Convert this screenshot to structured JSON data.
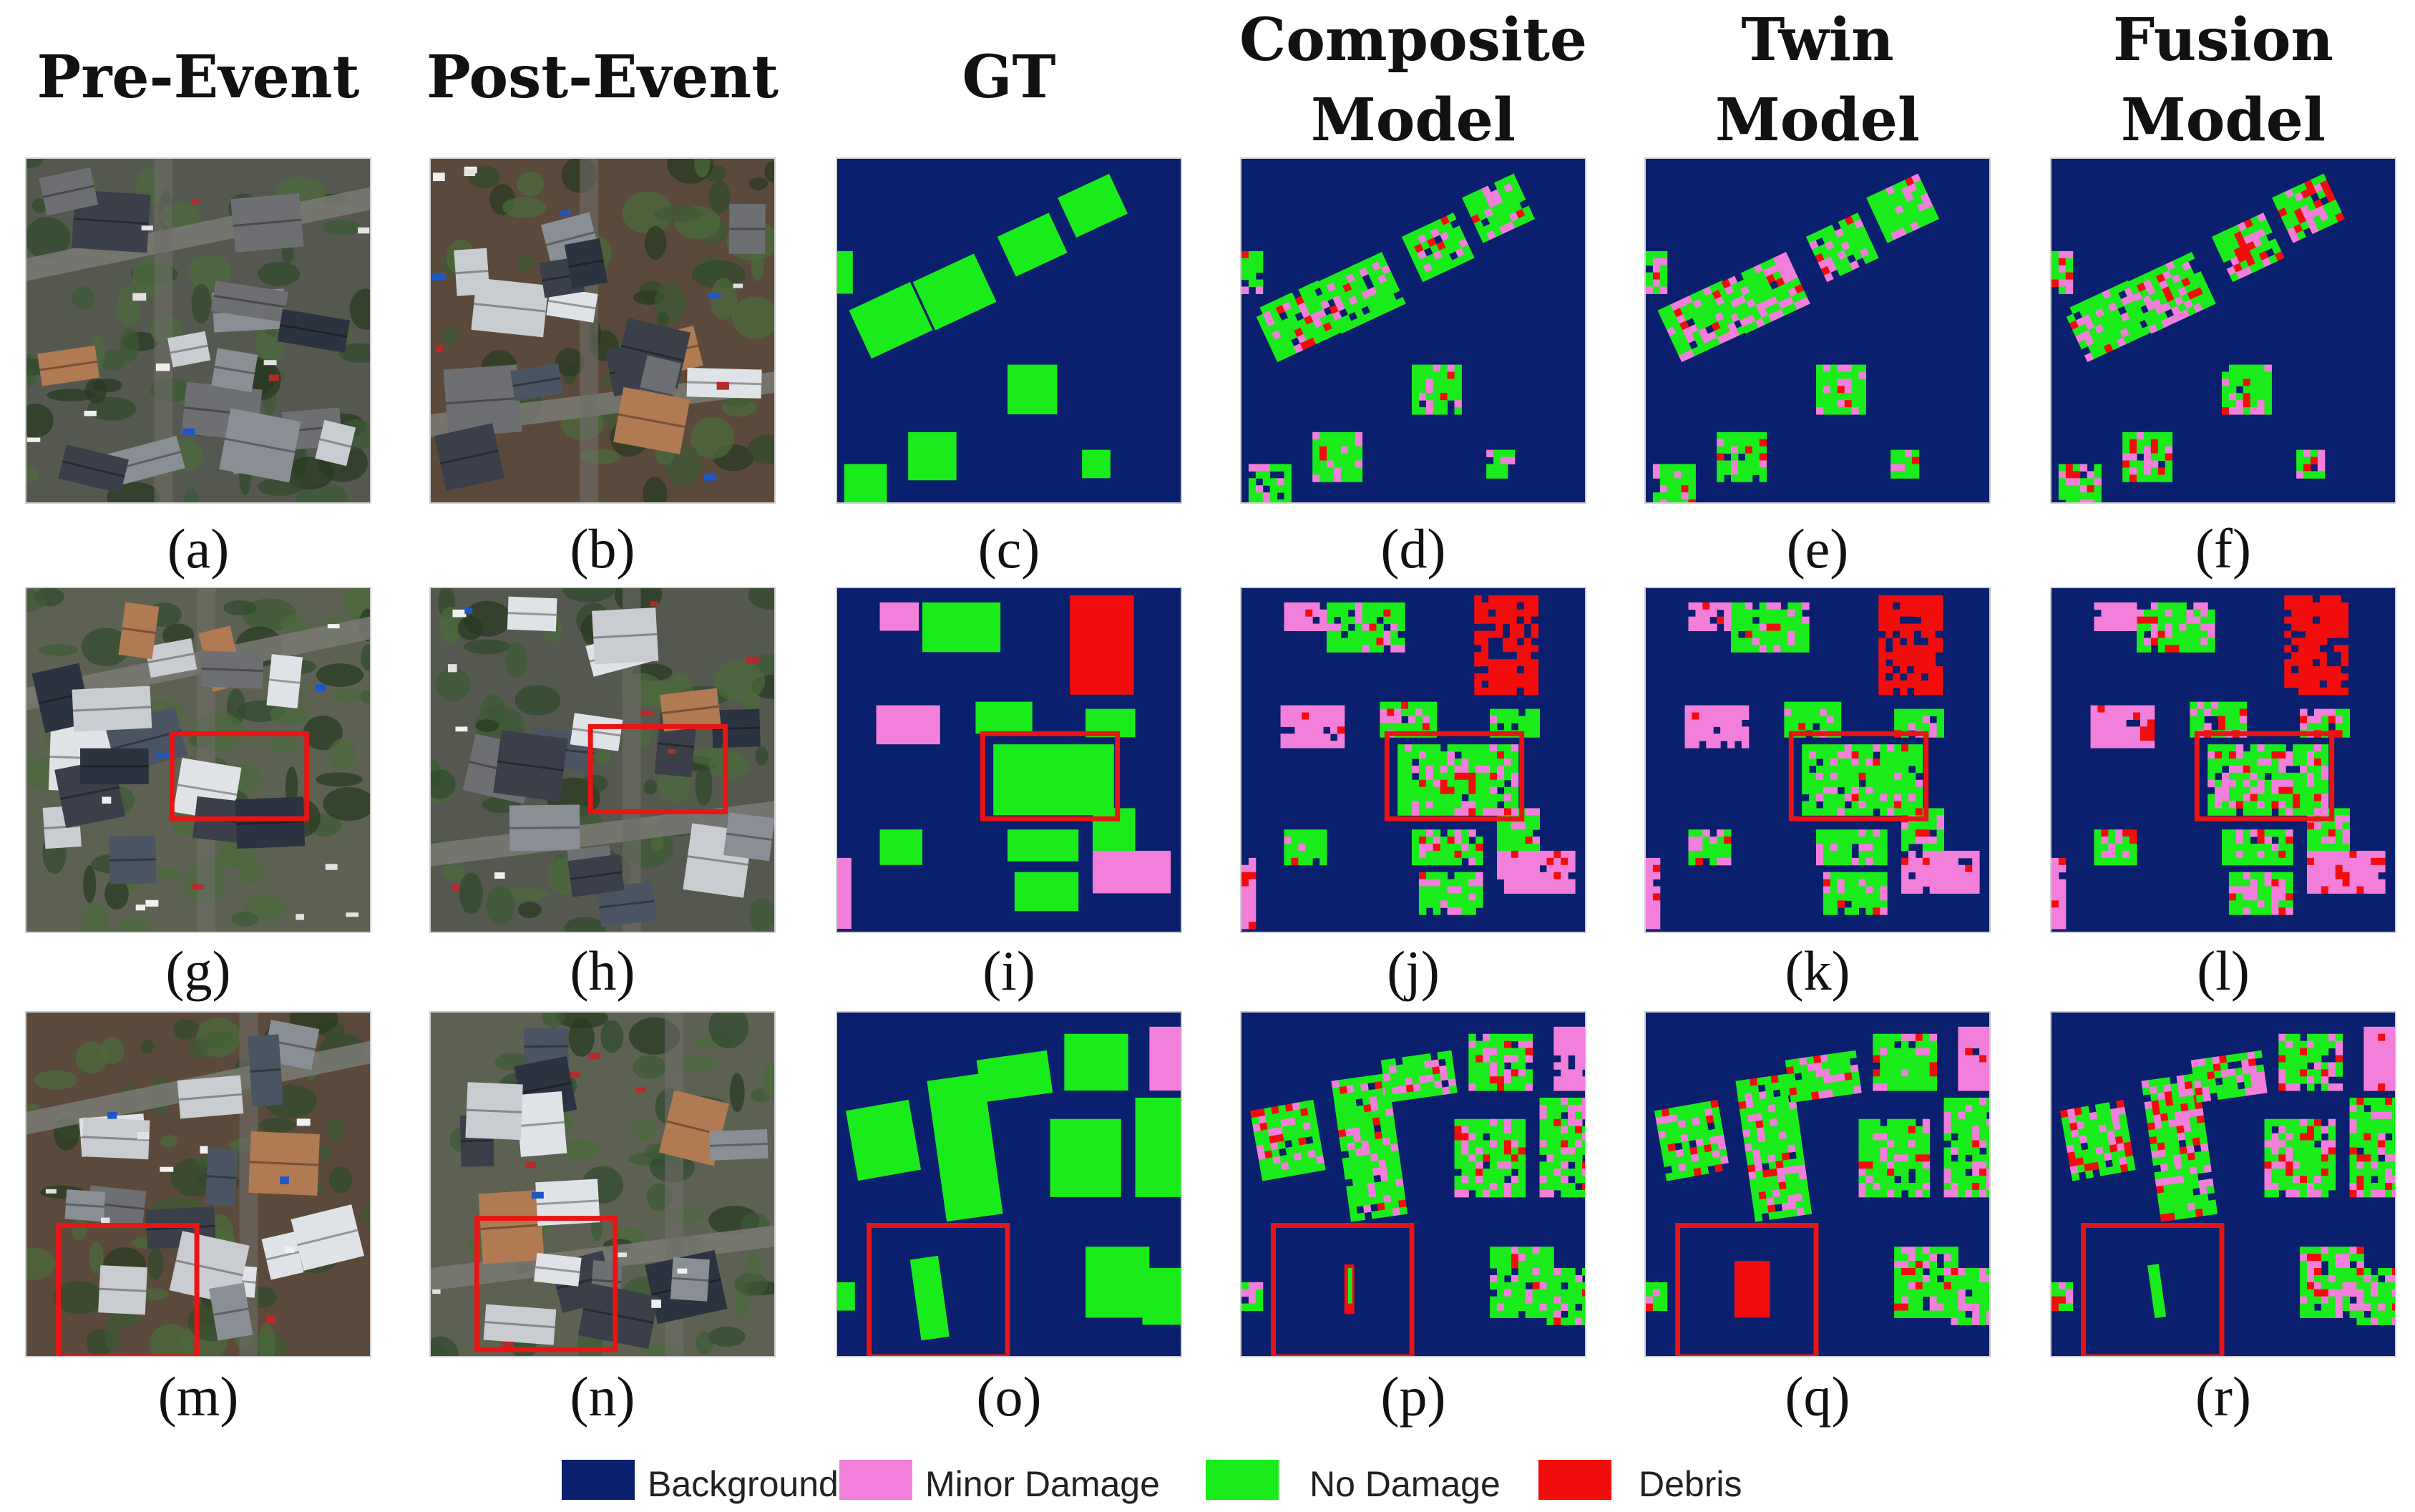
{
  "column_titles": [
    {
      "lines": [
        "Pre-Event"
      ]
    },
    {
      "lines": [
        "Post-Event"
      ]
    },
    {
      "lines": [
        "GT"
      ]
    },
    {
      "lines": [
        "Composite",
        "Model"
      ]
    },
    {
      "lines": [
        "Twin",
        "Model"
      ]
    },
    {
      "lines": [
        "Fusion",
        "Model"
      ]
    }
  ],
  "rows": [
    {
      "captions": [
        "(a)",
        "(b)",
        "(c)",
        "(d)",
        "(e)",
        "(f)"
      ],
      "highlight_box": false
    },
    {
      "captions": [
        "(g)",
        "(h)",
        "(i)",
        "(j)",
        "(k)",
        "(l)"
      ],
      "highlight_box": true
    },
    {
      "captions": [
        "(m)",
        "(n)",
        "(o)",
        "(p)",
        "(q)",
        "(r)"
      ],
      "highlight_box": true
    }
  ],
  "legend": [
    {
      "label": "Background",
      "color": "#0a1f6e"
    },
    {
      "label": "Minor Damage",
      "color": "#f27fd9"
    },
    {
      "label": "No Damage",
      "color": "#1aeb1a"
    },
    {
      "label": "Debris",
      "color": "#f20d0d"
    }
  ],
  "colors": {
    "background": "#0a1f6e",
    "minor_damage": "#f27fd9",
    "no_damage": "#1aeb1a",
    "debris": "#f20d0d",
    "highlight_box": "#e81515"
  }
}
